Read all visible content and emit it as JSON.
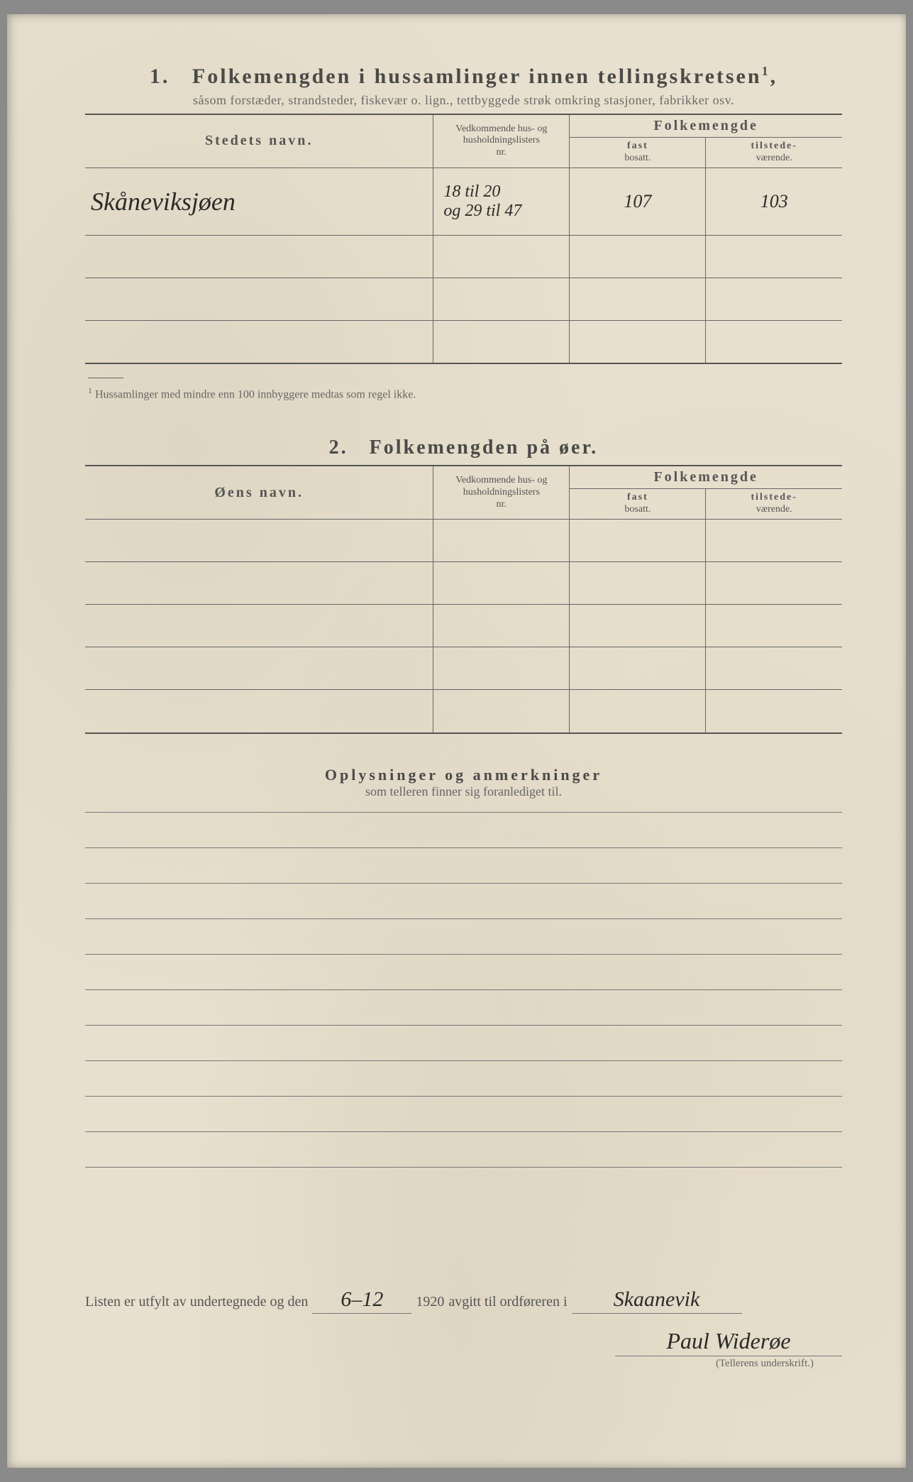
{
  "section1": {
    "number": "1.",
    "title": "Folkemengden i hussamlinger innen tellingskretsen",
    "title_sup": "1",
    "subtitle": "såsom forstæder, strandsteder, fiskevær o. lign., tettbyggede strøk omkring stasjoner, fabrikker osv.",
    "headers": {
      "stedet": "Stedets navn.",
      "nr_line1": "Vedkommende hus- og",
      "nr_line2": "husholdningslisters",
      "nr_line3": "nr.",
      "folkemengde": "Folkemengde",
      "fast_line1": "fast",
      "fast_line2": "bosatt.",
      "tilst_line1": "tilstede-",
      "tilst_line2": "værende."
    },
    "rows": [
      {
        "stedet": "Skåneviksjøen",
        "nr": "18 til 20\nog 29 til 47",
        "fast": "107",
        "tilst": "103"
      },
      {
        "stedet": "",
        "nr": "",
        "fast": "",
        "tilst": ""
      },
      {
        "stedet": "",
        "nr": "",
        "fast": "",
        "tilst": ""
      },
      {
        "stedet": "",
        "nr": "",
        "fast": "",
        "tilst": ""
      }
    ],
    "footnote_marker": "1",
    "footnote": "Hussamlinger med mindre enn 100 innbyggere medtas som regel ikke."
  },
  "section2": {
    "number": "2.",
    "title": "Folkemengden på øer.",
    "headers": {
      "oens": "Øens navn.",
      "nr_line1": "Vedkommende hus- og",
      "nr_line2": "husholdningslisters",
      "nr_line3": "nr.",
      "folkemengde": "Folkemengde",
      "fast_line1": "fast",
      "fast_line2": "bosatt.",
      "tilst_line1": "tilstede-",
      "tilst_line2": "værende."
    },
    "rows": [
      {
        "oens": "",
        "nr": "",
        "fast": "",
        "tilst": ""
      },
      {
        "oens": "",
        "nr": "",
        "fast": "",
        "tilst": ""
      },
      {
        "oens": "",
        "nr": "",
        "fast": "",
        "tilst": ""
      },
      {
        "oens": "",
        "nr": "",
        "fast": "",
        "tilst": ""
      },
      {
        "oens": "",
        "nr": "",
        "fast": "",
        "tilst": ""
      }
    ]
  },
  "notes": {
    "title": "Oplysninger og anmerkninger",
    "subtitle": "som telleren finner sig foranlediget til.",
    "line_count": 11
  },
  "signature": {
    "prefix": "Listen er utfylt av undertegnede og den",
    "date": "6–12",
    "year": "1920",
    "mid": "avgitt til ordføreren i",
    "place": "Skaanevik",
    "name": "Paul Widerøe",
    "caption": "(Tellerens underskrift.)"
  },
  "colors": {
    "paper": "#e8e0ce",
    "ink_print": "#4a4a48",
    "ink_hand": "#2a2a28",
    "rule": "#666666"
  }
}
